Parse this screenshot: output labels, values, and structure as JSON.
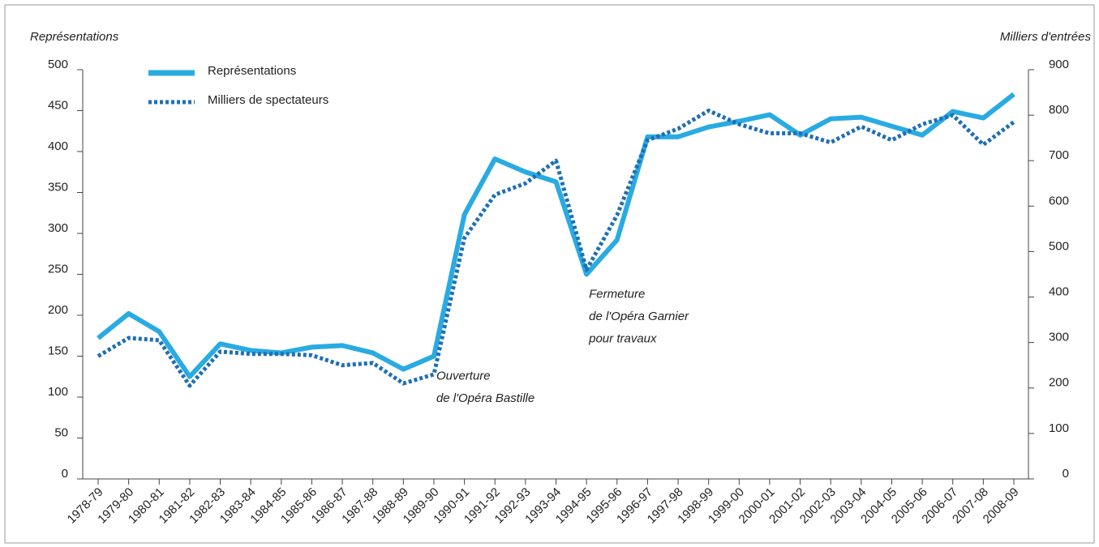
{
  "chart_data": {
    "type": "line",
    "ylabel": "Représentations",
    "y2label": "Milliers d'entrées",
    "categories": [
      "1978-79",
      "1979-80",
      "1980-81",
      "1981-82",
      "1982-83",
      "1983-84",
      "1984-85",
      "1985-86",
      "1986-87",
      "1987-88",
      "1988-89",
      "1989-90",
      "1990-91",
      "1991-92",
      "1992-93",
      "1993-94",
      "1994-95",
      "1995-96",
      "1996-97",
      "1997-98",
      "1998-99",
      "1999-00",
      "2000-01",
      "2001-02",
      "2002-03",
      "2003-04",
      "2004-05",
      "2005-06",
      "2006-07",
      "2007-08",
      "2008-09"
    ],
    "series": [
      {
        "name": "Représentations",
        "color": "#29abe2",
        "style": "solid",
        "values": [
          172,
          202,
          180,
          125,
          165,
          157,
          154,
          161,
          163,
          154,
          134,
          150,
          323,
          391,
          375,
          363,
          250,
          292,
          418,
          418,
          430,
          437,
          445,
          420,
          440,
          442,
          431,
          420,
          449,
          441,
          470
        ]
      },
      {
        "name": "Milliers de spectateurs",
        "color": "#1f6fb5",
        "style": "dotted",
        "axis": "y2",
        "values": [
          270,
          310,
          305,
          205,
          280,
          275,
          275,
          272,
          250,
          255,
          210,
          230,
          530,
          625,
          650,
          700,
          460,
          580,
          745,
          770,
          810,
          780,
          760,
          760,
          740,
          775,
          745,
          780,
          800,
          735,
          785
        ]
      }
    ],
    "ylim": [
      0,
      500
    ],
    "yticks": [
      0,
      50,
      100,
      150,
      200,
      250,
      300,
      350,
      400,
      450,
      500
    ],
    "y2lim": [
      0,
      900
    ],
    "y2ticks": [
      0,
      100,
      200,
      300,
      400,
      500,
      600,
      700,
      800,
      900
    ],
    "annotations": [
      {
        "category": "1989-90",
        "lines": [
          "Ouverture",
          "de l'Opéra Bastille"
        ]
      },
      {
        "category": "1994-95",
        "lines": [
          "Fermeture",
          "de l'Opéra Garnier",
          "pour travaux"
        ]
      }
    ]
  }
}
